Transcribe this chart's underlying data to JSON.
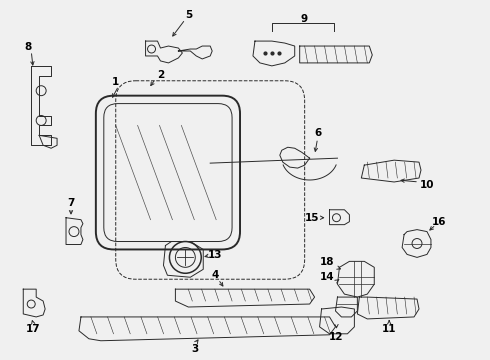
{
  "bg_color": "#f0f0f0",
  "line_color": "#2a2a2a",
  "label_color": "#000000",
  "figsize": [
    4.9,
    3.6
  ],
  "dpi": 100,
  "label_fontsize": 7.5,
  "lw_main": 1.1,
  "lw_thin": 0.7,
  "lw_dash": 0.8
}
